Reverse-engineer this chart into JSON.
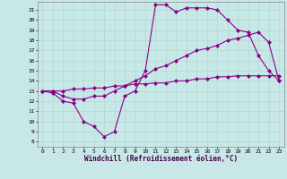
{
  "xlabel": "Windchill (Refroidissement éolien,°C)",
  "ylabel": "",
  "xlim": [
    -0.5,
    23.5
  ],
  "ylim": [
    7.5,
    21.8
  ],
  "xticks": [
    0,
    1,
    2,
    3,
    4,
    5,
    6,
    7,
    8,
    9,
    10,
    11,
    12,
    13,
    14,
    15,
    16,
    17,
    18,
    19,
    20,
    21,
    22,
    23
  ],
  "yticks": [
    8,
    9,
    10,
    11,
    12,
    13,
    14,
    15,
    16,
    17,
    18,
    19,
    20,
    21
  ],
  "background_color": "#c8e8e8",
  "grid_color": "#b0d8d0",
  "line_color": "#880088",
  "line1_x": [
    0,
    1,
    2,
    3,
    4,
    5,
    6,
    7,
    8,
    9,
    10,
    11,
    12,
    13,
    14,
    15,
    16,
    17,
    18,
    19,
    20,
    21,
    22,
    23
  ],
  "line1_y": [
    13,
    12.8,
    12.0,
    11.8,
    10.0,
    9.5,
    8.5,
    9.0,
    12.5,
    13.0,
    15.0,
    21.5,
    21.5,
    20.8,
    21.2,
    21.2,
    21.2,
    21.0,
    20.0,
    19.0,
    18.8,
    16.5,
    15.0,
    14.0
  ],
  "line2_x": [
    0,
    1,
    2,
    3,
    4,
    5,
    6,
    7,
    8,
    9,
    10,
    11,
    12,
    13,
    14,
    15,
    16,
    17,
    18,
    19,
    20,
    21,
    22,
    23
  ],
  "line2_y": [
    13,
    13,
    12.5,
    12.2,
    12.2,
    12.5,
    12.5,
    13.0,
    13.5,
    14.0,
    14.5,
    15.2,
    15.5,
    16.0,
    16.5,
    17.0,
    17.2,
    17.5,
    18.0,
    18.2,
    18.5,
    18.8,
    17.8,
    14.0
  ],
  "line3_x": [
    0,
    1,
    2,
    3,
    4,
    5,
    6,
    7,
    8,
    9,
    10,
    11,
    12,
    13,
    14,
    15,
    16,
    17,
    18,
    19,
    20,
    21,
    22,
    23
  ],
  "line3_y": [
    13,
    13,
    13,
    13.2,
    13.2,
    13.3,
    13.3,
    13.5,
    13.5,
    13.7,
    13.7,
    13.8,
    13.8,
    14.0,
    14.0,
    14.2,
    14.2,
    14.4,
    14.4,
    14.5,
    14.5,
    14.5,
    14.5,
    14.5
  ],
  "marker": "D",
  "markersize": 2.0,
  "linewidth": 0.8,
  "axis_fontsize": 5.5,
  "tick_fontsize": 4.5
}
